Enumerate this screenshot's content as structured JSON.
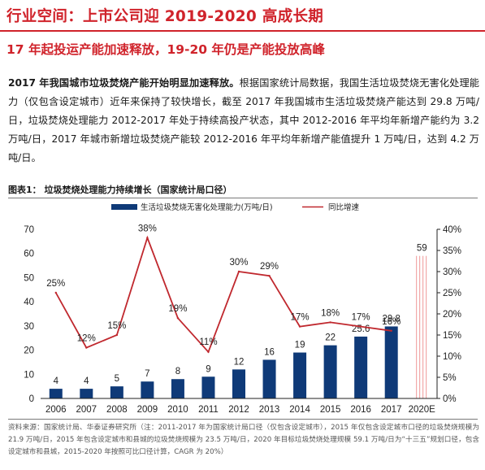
{
  "page": {
    "title": "行业空间：上市公司迎 2019-2020 高成长期",
    "subtitle": "17 年起投运产能加速释放，19-20 年仍是产能投放高峰",
    "paragraph_lead": "2017 年我国城市垃圾焚烧产能开始明显加速释放。",
    "paragraph_body": "根据国家统计局数据，我国生活垃圾焚烧无害化处理能力（仅包含设定城市）近年来保持了较快增长，截至 2017 年我国城市生活垃圾焚烧产能达到 29.8 万吨/日，垃圾焚烧处理能力 2012-2017 年处于持续高投产状态，其中 2012-2016 年平均年新增产能约为 3.2 万吨/日，2017 年城市新增垃圾焚烧产能较 2012-2016 年平均年新增产能值提升 1 万吨/日，达到 4.2 万吨/日。",
    "figure_label": "图表1：  垃圾焚烧处理能力持续增长（国家统计局口径）",
    "source_note": "资料来源：国家统计局、华泰证券研究所（注：2011-2017 年为国家统计局口径（仅包含设定城市），2015 年仅包含设定城市口径的垃圾焚烧规模为 21.9 万吨/日，2015 年包含设定城市和县城的垃圾焚烧规模为 23.5 万吨/日，2020 年目标垃圾焚烧处理规模 59.1 万吨/日为“十三五”规划口径，包含设定城市和县城，2015-2020 年按照可比口径计算，CAGR 为 20%）"
  },
  "colors": {
    "bar": "#0f3a78",
    "bar_forecast": "#f2a9a9",
    "line": "#c0282e",
    "accent": "#d0232b"
  },
  "chart_data": {
    "type": "bar",
    "categories": [
      "2006",
      "2007",
      "2008",
      "2009",
      "2010",
      "2011",
      "2012",
      "2013",
      "2014",
      "2015",
      "2016",
      "2017",
      "2020E"
    ],
    "series": [
      {
        "name": "生活垃圾焚烧无害化处理能力(万吨/日)",
        "type": "bar",
        "axis": "left",
        "values": [
          4,
          4,
          5,
          7,
          8,
          9,
          12,
          16,
          19,
          22,
          25.6,
          29.8,
          59
        ],
        "labels": [
          "4",
          "4",
          "5",
          "7",
          "8",
          "9",
          "12",
          "16",
          "19",
          "22",
          "25.6",
          "29.8",
          "59"
        ],
        "forecast_index": 12
      },
      {
        "name": "同比增速",
        "type": "line",
        "axis": "right",
        "values": [
          25,
          12,
          15,
          38,
          19,
          11,
          30,
          29,
          17,
          18,
          17,
          16,
          null
        ],
        "labels": [
          "25%",
          "12%",
          "15%",
          "38%",
          "19%",
          "11%",
          "30%",
          "29%",
          "17%",
          "18%",
          "17%",
          "16%",
          ""
        ]
      }
    ],
    "y_left": {
      "min": 0,
      "max": 70,
      "ticks": [
        "0",
        "10",
        "20",
        "30",
        "40",
        "50",
        "60",
        "70"
      ]
    },
    "y_right": {
      "min": 0,
      "max": 40,
      "ticks": [
        "0%",
        "5%",
        "10%",
        "15%",
        "20%",
        "25%",
        "30%",
        "35%",
        "40%"
      ]
    },
    "legend_position": "top",
    "grid": false
  }
}
